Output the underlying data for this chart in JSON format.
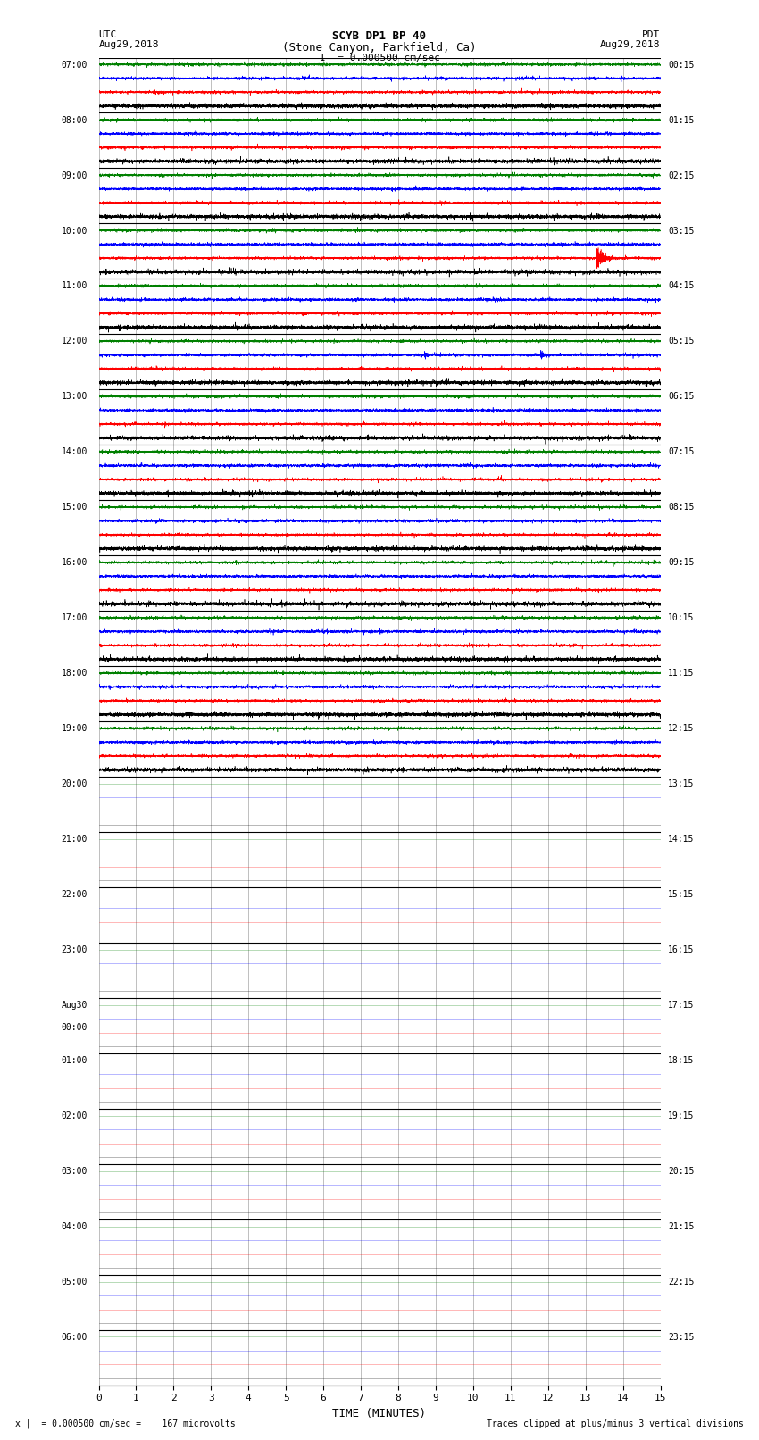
{
  "title_line1": "SCYB DP1 BP 40",
  "title_line2": "(Stone Canyon, Parkfield, Ca)",
  "scale_text": "I  = 0.000500 cm/sec",
  "left_label": "UTC",
  "left_date": "Aug29,2018",
  "right_label": "PDT",
  "right_date": "Aug29,2018",
  "xlabel": "TIME (MINUTES)",
  "footer_left": "x |  = 0.000500 cm/sec =    167 microvolts",
  "footer_right": "Traces clipped at plus/minus 3 vertical divisions",
  "bg_color": "#ffffff",
  "grid_color": "#808080",
  "trace_colors": [
    "black",
    "red",
    "blue",
    "green"
  ],
  "n_rows": 24,
  "minutes_per_row": 15,
  "traces_per_row": 4,
  "left_times_utc": [
    "07:00",
    "08:00",
    "09:00",
    "10:00",
    "11:00",
    "12:00",
    "13:00",
    "14:00",
    "15:00",
    "16:00",
    "17:00",
    "18:00",
    "19:00",
    "20:00",
    "21:00",
    "22:00",
    "23:00",
    "Aug30",
    "01:00",
    "02:00",
    "03:00",
    "04:00",
    "05:00",
    "06:00"
  ],
  "aug30_row": 17,
  "right_times_pdt": [
    "00:15",
    "01:15",
    "02:15",
    "03:15",
    "04:15",
    "05:15",
    "06:15",
    "07:15",
    "08:15",
    "09:15",
    "10:15",
    "11:15",
    "12:15",
    "13:15",
    "14:15",
    "15:15",
    "16:15",
    "17:15",
    "18:15",
    "19:15",
    "20:15",
    "21:15",
    "22:15",
    "23:15"
  ],
  "signal_rows": 13,
  "noise_amp_black": 0.012,
  "noise_amp_red": 0.008,
  "noise_amp_blue": 0.008,
  "noise_amp_green": 0.008,
  "earthquake_row": 3,
  "earthquake_trace": 1,
  "earthquake_minute": 13.3,
  "earthquake_amplitude": 0.12,
  "event2_row": 5,
  "event2_trace": 2,
  "event2_minute1": 8.7,
  "event2_minute2": 11.8,
  "event2_amplitude": 0.04,
  "event3_row": 9,
  "event3_trace": 0,
  "event3_minute": 10.0,
  "event3_amplitude": 0.025,
  "event4_row": 10,
  "event4_trace": 2,
  "event4_minute": 7.5,
  "event4_amplitude": 0.025
}
